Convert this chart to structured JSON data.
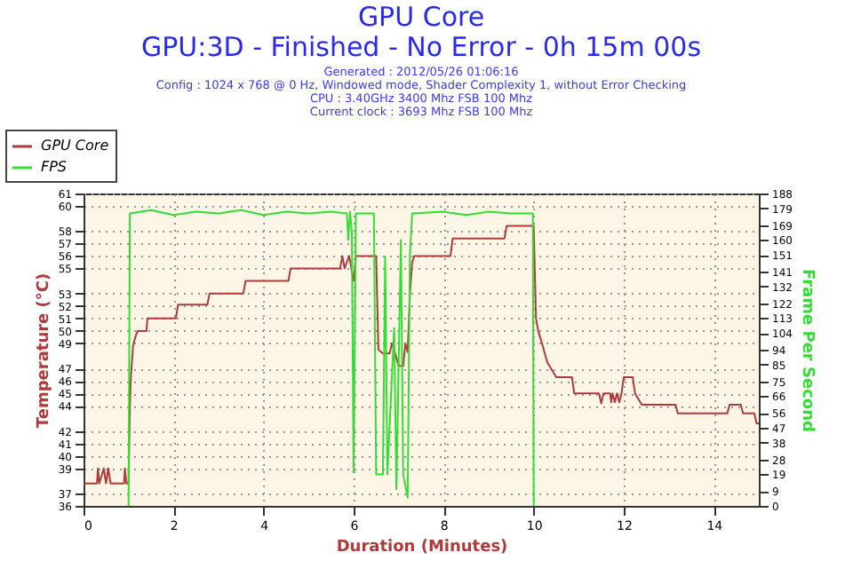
{
  "chart_data": {
    "type": "line",
    "title": "GPU Core",
    "subtitle": "GPU:3D - Finished - No Error - 0h 15m 00s",
    "annotations": [
      "Generated : 2012/05/26 01:06:16",
      "Config : 1024 x 768 @ 0 Hz, Windowed mode, Shader Complexity 1, without Error Checking",
      "CPU : 3.40GHz 3400 Mhz FSB 100 Mhz",
      "Current clock : 3693 Mhz FSB 100 Mhz"
    ],
    "xlabel": "Duration (Minutes)",
    "ylabel": "Temperature (°C)",
    "y2label": "Frame Per Second",
    "xlim": [
      0,
      15
    ],
    "xticks": [
      0,
      2,
      4,
      6,
      8,
      10,
      12,
      14
    ],
    "ylim": [
      36,
      61
    ],
    "yticks": [
      36,
      37,
      39,
      40,
      41,
      42,
      44,
      45,
      46,
      47,
      49,
      50,
      51,
      52,
      53,
      55,
      56,
      57,
      58,
      60,
      61
    ],
    "y2lim": [
      0,
      188
    ],
    "y2ticks": [
      0,
      9,
      19,
      28,
      38,
      47,
      56,
      66,
      75,
      85,
      94,
      104,
      113,
      122,
      132,
      141,
      151,
      160,
      169,
      179,
      188
    ],
    "grid": true,
    "legend": "top left",
    "line_style": "solid",
    "marker": "none",
    "series": [
      {
        "name": "GPU Core",
        "color": "#b03a3a",
        "x": [
          0,
          0.3,
          0.32,
          0.35,
          0.45,
          0.5,
          0.55,
          0.6,
          0.9,
          0.92,
          0.95,
          1.0,
          1.03,
          1.05,
          1.1,
          1.15,
          1.2,
          1.4,
          1.42,
          2.05,
          2.1,
          2.75,
          2.8,
          3.55,
          3.6,
          4.55,
          4.6,
          5.7,
          5.75,
          5.8,
          5.9,
          6.0,
          6.05,
          6.5,
          6.55,
          6.65,
          6.8,
          6.85,
          6.9,
          7.0,
          7.1,
          7.15,
          7.2,
          7.25,
          7.3,
          7.35,
          8.15,
          8.2,
          9.35,
          9.4,
          10.0,
          10.05,
          10.1,
          10.2,
          10.3,
          10.5,
          10.85,
          10.9,
          11.45,
          11.5,
          11.55,
          11.7,
          11.72,
          11.75,
          11.8,
          11.85,
          11.9,
          11.95,
          12.0,
          12.2,
          12.25,
          12.4,
          13.15,
          13.2,
          14.3,
          14.35,
          14.6,
          14.65,
          14.9,
          14.95,
          15.0
        ],
        "values": [
          37.8,
          37.8,
          39,
          37.8,
          39,
          37.8,
          39,
          37.8,
          37.8,
          39,
          37.8,
          37.8,
          44,
          46.2,
          48.8,
          49.5,
          50,
          50,
          51,
          51,
          52.1,
          52.1,
          53,
          53,
          54,
          54,
          55,
          55,
          56,
          55,
          56,
          54,
          56,
          56,
          48.5,
          48.2,
          48.2,
          49,
          48.5,
          47.2,
          47.2,
          49,
          48.3,
          53,
          55.5,
          56,
          56,
          57.4,
          57.4,
          58.4,
          58.4,
          51,
          50,
          48.8,
          47.5,
          46.3,
          46.3,
          45,
          45,
          44.2,
          45,
          45,
          44.3,
          45,
          44.3,
          45,
          44.3,
          45,
          46.3,
          46.3,
          45,
          44.1,
          44.1,
          43.4,
          43.4,
          44.1,
          44.1,
          43.4,
          43.4,
          42.6,
          42.6
        ]
      },
      {
        "name": "FPS",
        "color": "#33dd33",
        "axis": "y2",
        "x": [
          1.0,
          1.03,
          1.5,
          2.0,
          2.5,
          3.0,
          3.5,
          4.0,
          4.5,
          5.0,
          5.5,
          5.85,
          5.88,
          5.92,
          5.96,
          6.0,
          6.05,
          6.3,
          6.45,
          6.5,
          6.65,
          6.7,
          6.75,
          6.9,
          6.95,
          7.05,
          7.1,
          7.2,
          7.25,
          7.3,
          8.0,
          8.5,
          9.0,
          9.5,
          9.98,
          10.0
        ],
        "values": [
          0,
          176,
          178,
          175,
          177,
          176,
          178,
          175,
          177,
          176,
          177,
          176,
          160,
          177,
          165,
          20,
          176,
          176,
          176,
          19,
          19,
          150,
          19,
          107,
          10,
          160,
          19,
          5,
          150,
          176,
          177,
          175,
          177,
          176,
          176,
          0
        ]
      }
    ]
  }
}
